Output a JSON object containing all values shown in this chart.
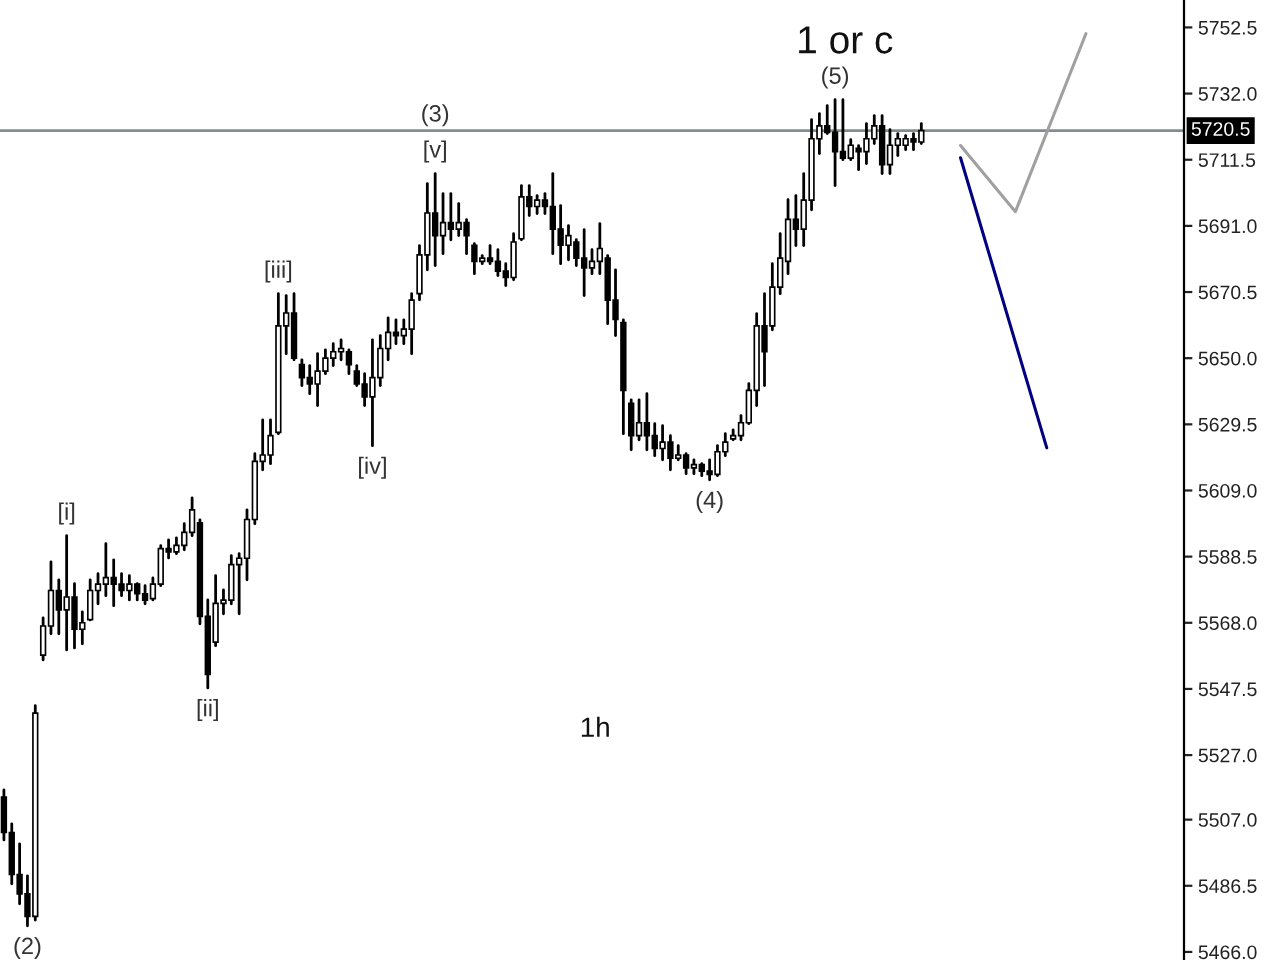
{
  "chart_data": {
    "type": "candlestick",
    "title": "1 or c",
    "categories": [
      null,
      null,
      null,
      null,
      null,
      null,
      null,
      null,
      null,
      null,
      null,
      null,
      null,
      null,
      null,
      null,
      null,
      null,
      null,
      null,
      null,
      null,
      null,
      null,
      null,
      null,
      null,
      null,
      null,
      null,
      null,
      null,
      null,
      null,
      null,
      null,
      null,
      null,
      null,
      null,
      null,
      null,
      null,
      null,
      null,
      null,
      null,
      null,
      null,
      null,
      null,
      null,
      null,
      null,
      null,
      null,
      null,
      null,
      null,
      null,
      null,
      null,
      null,
      null,
      null,
      null,
      null,
      null,
      null,
      null,
      null,
      null,
      null,
      null,
      null,
      null,
      null,
      null,
      null,
      null,
      null,
      null,
      null,
      null,
      null,
      null,
      null,
      null,
      null,
      null,
      null,
      null,
      null,
      null,
      null,
      null,
      null,
      null,
      null,
      null,
      null,
      null,
      null,
      null,
      null,
      null,
      null,
      null,
      null,
      null,
      null,
      null,
      null,
      null,
      null,
      null,
      null,
      null,
      null,
      null,
      null,
      null,
      null,
      null,
      null,
      null,
      null,
      null,
      null,
      null,
      null,
      null,
      null,
      null,
      null,
      null,
      null,
      null,
      null,
      null,
      null,
      null,
      null,
      null,
      null,
      null,
      null,
      null,
      null,
      null,
      null
    ],
    "ohlc": [
      [
        5514,
        5516.2,
        5500.7,
        5503
      ],
      [
        5503,
        5505.7,
        5487.1,
        5490
      ],
      [
        5490,
        5499.5,
        5480.9,
        5484
      ],
      [
        5484,
        5489.6,
        5474.1,
        5477
      ],
      [
        5477,
        5542.3,
        5475.9,
        5540
      ],
      [
        5558,
        5569.5,
        5556.5,
        5567
      ],
      [
        5567,
        5586.9,
        5564.6,
        5578
      ],
      [
        5578,
        5581.3,
        5564.6,
        5572
      ],
      [
        5572,
        5595.0,
        5559.6,
        5576
      ],
      [
        5576,
        5580.1,
        5560.2,
        5566
      ],
      [
        5566,
        5571.4,
        5561.5,
        5568
      ],
      [
        5569,
        5581.3,
        5568.9,
        5578
      ],
      [
        5578,
        5583.2,
        5573.9,
        5580
      ],
      [
        5580,
        5592.5,
        5576.4,
        5582
      ],
      [
        5582,
        5587.5,
        5573.3,
        5580
      ],
      [
        5580,
        5583.2,
        5576.4,
        5578
      ],
      [
        5578,
        5582.6,
        5575.1,
        5580
      ],
      [
        5580,
        5580.1,
        5575.1,
        5577
      ],
      [
        5577,
        5579.5,
        5573.9,
        5575
      ],
      [
        5575.5,
        5581.9,
        5575.1,
        5580
      ],
      [
        5580,
        5591.9,
        5579.5,
        5591
      ],
      [
        5591,
        5593.7,
        5588.1,
        5590
      ],
      [
        5590,
        5594.3,
        5589.4,
        5592
      ],
      [
        5592,
        5598.7,
        5590.6,
        5596
      ],
      [
        5596,
        5606.7,
        5595.0,
        5603
      ],
      [
        5599,
        5599.9,
        5567.7,
        5570
      ],
      [
        5570,
        5575.1,
        5547.8,
        5552
      ],
      [
        5562,
        5582.6,
        5560.9,
        5574
      ],
      [
        5574,
        5578.2,
        5570.8,
        5575
      ],
      [
        5575,
        5588.8,
        5573.9,
        5586
      ],
      [
        5586,
        5589.4,
        5570.8,
        5588
      ],
      [
        5588,
        5603.0,
        5581.3,
        5600
      ],
      [
        5600,
        5620.4,
        5598.7,
        5618
      ],
      [
        5618,
        5630.9,
        5615.4,
        5620
      ],
      [
        5620,
        5630.9,
        5617.3,
        5626
      ],
      [
        5627,
        5670.0,
        5626.6,
        5660
      ],
      [
        5660,
        5669.4,
        5651.4,
        5664
      ],
      [
        5664,
        5670.0,
        5649.5,
        5650
      ],
      [
        5648,
        5649.5,
        5641.5,
        5644
      ],
      [
        5644,
        5647.7,
        5639.0,
        5642
      ],
      [
        5642,
        5651.4,
        5635.3,
        5646
      ],
      [
        5646,
        5652.6,
        5645.2,
        5650
      ],
      [
        5650,
        5654.5,
        5647.7,
        5652
      ],
      [
        5652,
        5655.7,
        5649.5,
        5653
      ],
      [
        5652,
        5652.6,
        5645.2,
        5648
      ],
      [
        5646,
        5647.7,
        5641.5,
        5642
      ],
      [
        5642,
        5645.2,
        5635.3,
        5638
      ],
      [
        5638,
        5655.7,
        5622.9,
        5644
      ],
      [
        5644,
        5657.0,
        5641.5,
        5653
      ],
      [
        5653,
        5662.5,
        5649.5,
        5658
      ],
      [
        5658,
        5661.9,
        5654.5,
        5657
      ],
      [
        5657,
        5661.9,
        5654.5,
        5659
      ],
      [
        5659,
        5670.0,
        5651.4,
        5668
      ],
      [
        5670,
        5684.9,
        5668.1,
        5682
      ],
      [
        5682,
        5704.1,
        5677.4,
        5695
      ],
      [
        5695,
        5707.2,
        5678.7,
        5688
      ],
      [
        5688,
        5701.0,
        5682.4,
        5692
      ],
      [
        5692,
        5701.0,
        5686.7,
        5690
      ],
      [
        5690,
        5697.9,
        5688.0,
        5692
      ],
      [
        5692,
        5692.9,
        5682.4,
        5688
      ],
      [
        5685,
        5685.5,
        5676.2,
        5680
      ],
      [
        5680,
        5681.8,
        5679.3,
        5681
      ],
      [
        5681,
        5684.9,
        5679.3,
        5680
      ],
      [
        5680,
        5683.6,
        5675.6,
        5677
      ],
      [
        5677,
        5679.3,
        5672.5,
        5675
      ],
      [
        5675,
        5688.6,
        5674.3,
        5686
      ],
      [
        5687,
        5703.5,
        5686.7,
        5700
      ],
      [
        5700,
        5703.5,
        5694.2,
        5697
      ],
      [
        5697,
        5700.4,
        5694.8,
        5699
      ],
      [
        5699,
        5701.0,
        5694.8,
        5697
      ],
      [
        5697,
        5707.2,
        5682.4,
        5690
      ],
      [
        5690,
        5697.3,
        5679.3,
        5685
      ],
      [
        5685,
        5691.1,
        5680.5,
        5688
      ],
      [
        5686,
        5686.7,
        5678.7,
        5681
      ],
      [
        5681,
        5689.8,
        5669.4,
        5678
      ],
      [
        5678,
        5683.6,
        5676.2,
        5680
      ],
      [
        5680,
        5691.7,
        5676.2,
        5684
      ],
      [
        5681,
        5681.8,
        5660.7,
        5668
      ],
      [
        5668,
        5677.4,
        5657.0,
        5662
      ],
      [
        5661,
        5661.9,
        5626.6,
        5640
      ],
      [
        5636,
        5637.1,
        5621.6,
        5626
      ],
      [
        5626,
        5637.1,
        5624.7,
        5630
      ],
      [
        5630,
        5639.0,
        5621.6,
        5626
      ],
      [
        5626,
        5629.7,
        5619.8,
        5622
      ],
      [
        5622,
        5629.1,
        5618.5,
        5624
      ],
      [
        5624,
        5626.0,
        5615.4,
        5619
      ],
      [
        5619,
        5622.9,
        5618.5,
        5620
      ],
      [
        5620,
        5620.4,
        5614.2,
        5616
      ],
      [
        5616,
        5618.5,
        5614.2,
        5617
      ],
      [
        5617,
        5617.3,
        5613.6,
        5615
      ],
      [
        5615,
        5618.5,
        5612.3,
        5614
      ],
      [
        5614,
        5622.9,
        5613.6,
        5621
      ],
      [
        5621,
        5626.6,
        5619.8,
        5624
      ],
      [
        5625,
        5627.8,
        5624.7,
        5626
      ],
      [
        5626,
        5632.2,
        5624.7,
        5630
      ],
      [
        5630,
        5642.1,
        5629.7,
        5640
      ],
      [
        5640,
        5663.8,
        5635.3,
        5660
      ],
      [
        5660,
        5670.0,
        5641.5,
        5652
      ],
      [
        5660,
        5679.3,
        5658.8,
        5672
      ],
      [
        5672,
        5688.6,
        5670.0,
        5681
      ],
      [
        5680,
        5699.1,
        5676.2,
        5693
      ],
      [
        5693,
        5700.4,
        5684.9,
        5690
      ],
      [
        5690,
        5707.2,
        5684.9,
        5699
      ],
      [
        5699,
        5723.9,
        5696.0,
        5718
      ],
      [
        5718,
        5725.8,
        5713.4,
        5722
      ],
      [
        5722,
        5728.3,
        5719.6,
        5720
      ],
      [
        5720,
        5730.1,
        5703.5,
        5714
      ],
      [
        5714,
        5730.1,
        5711.5,
        5712
      ],
      [
        5712,
        5717.7,
        5711.5,
        5716
      ],
      [
        5715,
        5715.9,
        5708.4,
        5714
      ],
      [
        5714,
        5722.7,
        5710.3,
        5718
      ],
      [
        5718,
        5725.2,
        5716.5,
        5722
      ],
      [
        5722,
        5725.2,
        5707.2,
        5710
      ],
      [
        5710,
        5720.8,
        5707.2,
        5716
      ],
      [
        5716,
        5719.6,
        5712.8,
        5718
      ],
      [
        5716,
        5719.0,
        5714.6,
        5718
      ],
      [
        5718,
        5719.6,
        5714.6,
        5717
      ],
      [
        5717,
        5722.7,
        5716.5,
        5720.5
      ],
      null,
      null,
      null,
      null,
      null,
      null,
      null,
      null,
      null,
      null,
      null,
      null,
      null,
      null,
      null,
      null,
      null,
      null,
      null,
      null,
      null,
      null,
      null,
      null,
      null,
      null,
      null,
      null,
      null,
      null,
      null,
      null,
      null
    ],
    "color": "#000000",
    "series": [
      {
        "type": "line",
        "color": "#a0a0a0",
        "values": [
          null,
          null,
          null,
          null,
          null,
          null,
          null,
          null,
          null,
          null,
          null,
          null,
          null,
          null,
          null,
          null,
          null,
          null,
          null,
          null,
          null,
          null,
          null,
          null,
          null,
          null,
          null,
          null,
          null,
          null,
          null,
          null,
          null,
          null,
          null,
          null,
          null,
          null,
          null,
          null,
          null,
          null,
          null,
          null,
          null,
          null,
          null,
          null,
          null,
          null,
          null,
          null,
          null,
          null,
          null,
          null,
          null,
          null,
          null,
          null,
          null,
          null,
          null,
          null,
          null,
          null,
          null,
          null,
          null,
          null,
          null,
          null,
          null,
          null,
          null,
          null,
          null,
          null,
          null,
          null,
          null,
          null,
          null,
          null,
          null,
          null,
          null,
          null,
          null,
          null,
          null,
          null,
          null,
          null,
          null,
          null,
          null,
          null,
          null,
          null,
          null,
          null,
          null,
          null,
          null,
          null,
          null,
          null,
          null,
          null,
          null,
          null,
          null,
          null,
          null,
          null,
          null,
          null,
          null,
          null,
          null,
          null,
          5715.9,
          null,
          null,
          null,
          null,
          null,
          null,
          5695.4,
          null,
          null,
          null,
          null,
          null,
          null,
          null,
          null,
          5750.6,
          null,
          null,
          null,
          null,
          null,
          null,
          null,
          null,
          null,
          null,
          null,
          null
        ]
      },
      {
        "type": "line",
        "color": "#000080",
        "values": [
          null,
          null,
          null,
          null,
          null,
          null,
          null,
          null,
          null,
          null,
          null,
          null,
          null,
          null,
          null,
          null,
          null,
          null,
          null,
          null,
          null,
          null,
          null,
          null,
          null,
          null,
          null,
          null,
          null,
          null,
          null,
          null,
          null,
          null,
          null,
          null,
          null,
          null,
          null,
          null,
          null,
          null,
          null,
          null,
          null,
          null,
          null,
          null,
          null,
          null,
          null,
          null,
          null,
          null,
          null,
          null,
          null,
          null,
          null,
          null,
          null,
          null,
          null,
          null,
          null,
          null,
          null,
          null,
          null,
          null,
          null,
          null,
          null,
          null,
          null,
          null,
          null,
          null,
          null,
          null,
          null,
          null,
          null,
          null,
          null,
          null,
          null,
          null,
          null,
          null,
          null,
          null,
          null,
          null,
          null,
          null,
          null,
          null,
          null,
          null,
          null,
          null,
          null,
          null,
          null,
          null,
          null,
          null,
          null,
          null,
          null,
          null,
          null,
          null,
          null,
          null,
          null,
          null,
          null,
          null,
          null,
          null,
          5712.1,
          null,
          null,
          null,
          null,
          null,
          null,
          null,
          null,
          null,
          null,
          5622.2,
          null,
          null,
          null,
          null,
          null,
          null,
          null,
          null,
          null,
          null,
          null,
          null,
          null,
          null,
          null,
          null,
          null
        ]
      }
    ],
    "ylim": [
      5463.5,
      5761.0
    ],
    "yticks": [
      {
        "value": 5466.0,
        "label": "5466.0"
      },
      {
        "value": 5486.5,
        "label": "5486.5"
      },
      {
        "value": 5507.0,
        "label": "5507.0"
      },
      {
        "value": 5527.0,
        "label": "5527.0"
      },
      {
        "value": 5547.5,
        "label": "5547.5"
      },
      {
        "value": 5568.0,
        "label": "5568.0"
      },
      {
        "value": 5588.5,
        "label": "5588.5"
      },
      {
        "value": 5609.0,
        "label": "5609.0"
      },
      {
        "value": 5629.5,
        "label": "5629.5"
      },
      {
        "value": 5650.0,
        "label": "5650.0"
      },
      {
        "value": 5670.5,
        "label": "5670.5"
      },
      {
        "value": 5691.0,
        "label": "5691.0"
      },
      {
        "value": 5711.5,
        "label": "5711.5"
      },
      {
        "value": 5732.0,
        "label": "5732.0"
      },
      {
        "value": 5752.5,
        "label": "5752.5"
      }
    ],
    "ref_lines": [
      {
        "axis": "y",
        "value": 5720.5,
        "label": "5720.5",
        "color": "#7f8f8f"
      }
    ],
    "annotations": [
      {
        "text": "(2)",
        "y": 5474.1
      },
      {
        "text": "[i]",
        "y": 5595.0
      },
      {
        "text": "[ii]",
        "y": 5547.8
      },
      {
        "text": "[iii]",
        "y": 5670.0
      },
      {
        "text": "[iv]",
        "y": 5622.9
      },
      {
        "text": "[v]",
        "y": 5707.2
      },
      {
        "text": "(3)",
        "y": 5707.2
      },
      {
        "text": "(4)",
        "y": 5612.3
      },
      {
        "text": "(5)",
        "y": 5730.1
      },
      "1h"
    ],
    "tick_labels": "y",
    "grid": false,
    "legend": false
  }
}
